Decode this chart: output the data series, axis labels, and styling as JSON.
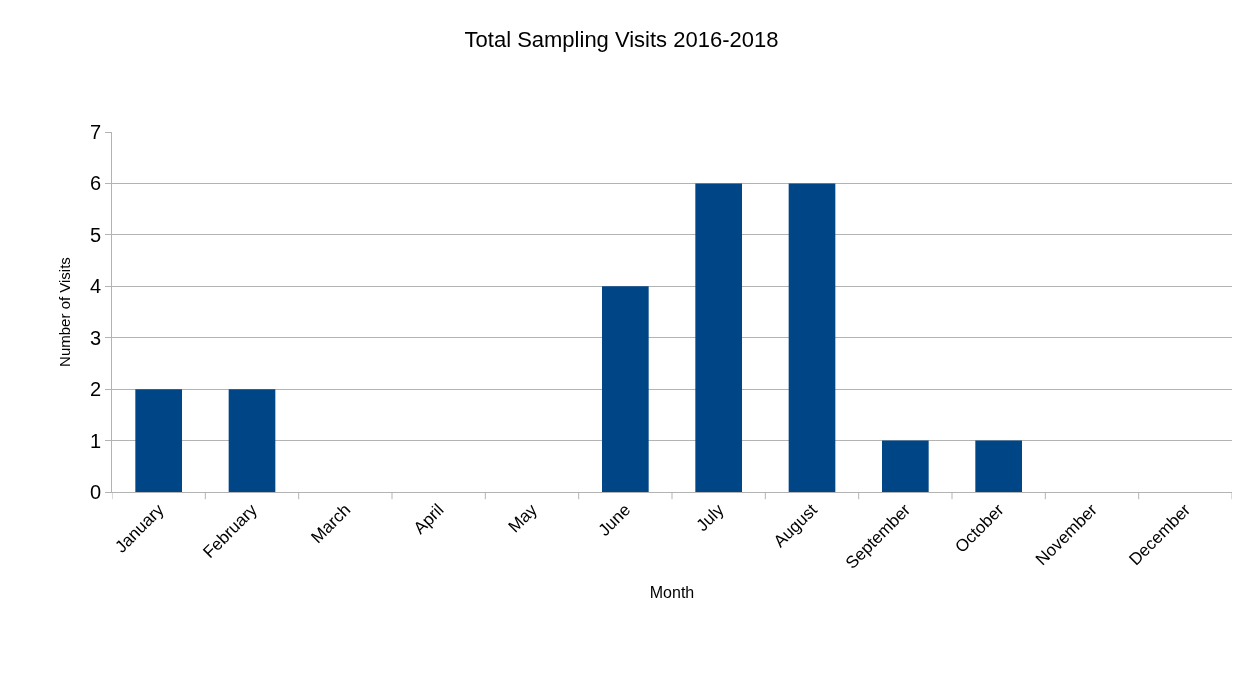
{
  "chart_data": {
    "type": "bar",
    "title": "Total Sampling Visits 2016-2018",
    "xlabel": "Month",
    "ylabel": "Number of Visits",
    "categories": [
      "January",
      "February",
      "March",
      "April",
      "May",
      "June",
      "July",
      "August",
      "September",
      "October",
      "November",
      "December"
    ],
    "values": [
      2,
      2,
      0,
      0,
      0,
      4,
      6,
      6,
      1,
      1,
      0,
      0
    ],
    "color": "#004586",
    "ylim": [
      0,
      7
    ],
    "yticks": [
      0,
      1,
      2,
      3,
      4,
      5,
      6,
      7
    ],
    "grid": "y",
    "legend": false
  }
}
